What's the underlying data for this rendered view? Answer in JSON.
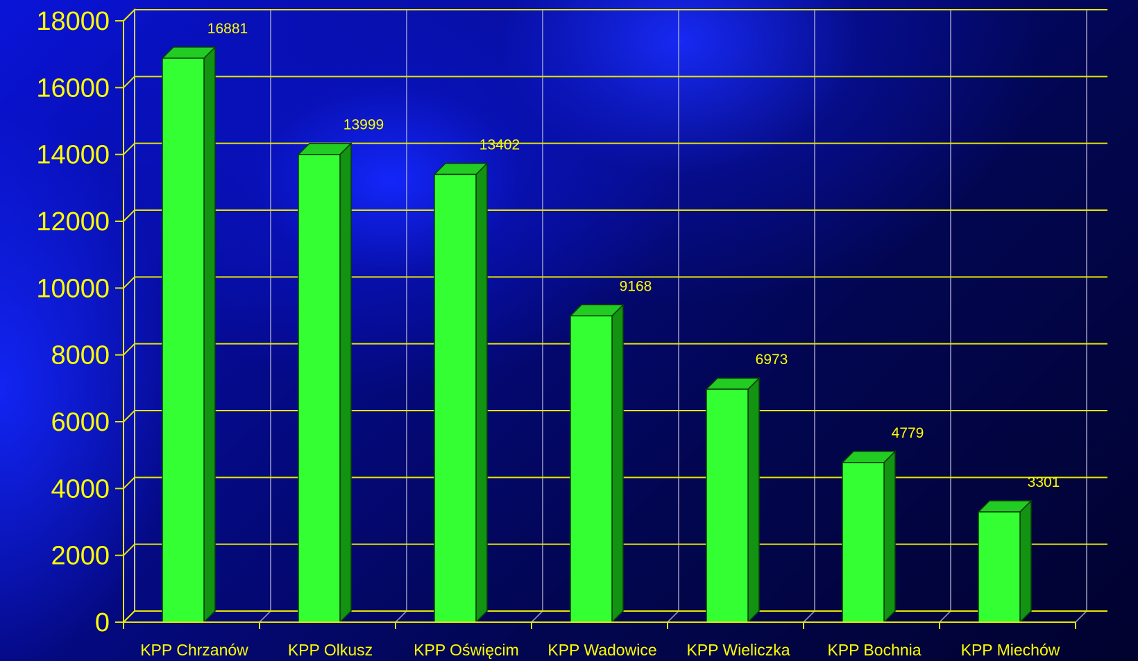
{
  "chart_data": {
    "type": "bar",
    "title": "",
    "xlabel": "",
    "ylabel": "",
    "categories": [
      "KPP Chrzanów",
      "KPP Olkusz",
      "KPP Oświęcim",
      "KPP Wadowice",
      "KPP Wieliczka",
      "KPP Bochnia",
      "KPP Miechów"
    ],
    "values": [
      16881,
      13999,
      13402,
      9168,
      6973,
      4779,
      3301
    ],
    "data_labels": [
      "16881",
      "13999",
      "13402",
      "9168",
      "6973",
      "4779",
      "3301"
    ],
    "ylim": [
      0,
      18000
    ],
    "yticks": [
      0,
      2000,
      4000,
      6000,
      8000,
      10000,
      12000,
      14000,
      16000,
      18000
    ],
    "ytick_labels": [
      "0",
      "2000",
      "4000",
      "6000",
      "8000",
      "10000",
      "12000",
      "14000",
      "16000",
      "18000"
    ],
    "grid": true,
    "legend": "none",
    "style": "3d-bars",
    "colors": {
      "bar_front": "#33ff33",
      "bar_side": "#129412",
      "bar_top": "#22cc22",
      "bar_outline": "#0a3a0a",
      "gridline": "#e6e600",
      "vertical_gridline": "#b8b8d8",
      "text": "#ffff00"
    }
  }
}
